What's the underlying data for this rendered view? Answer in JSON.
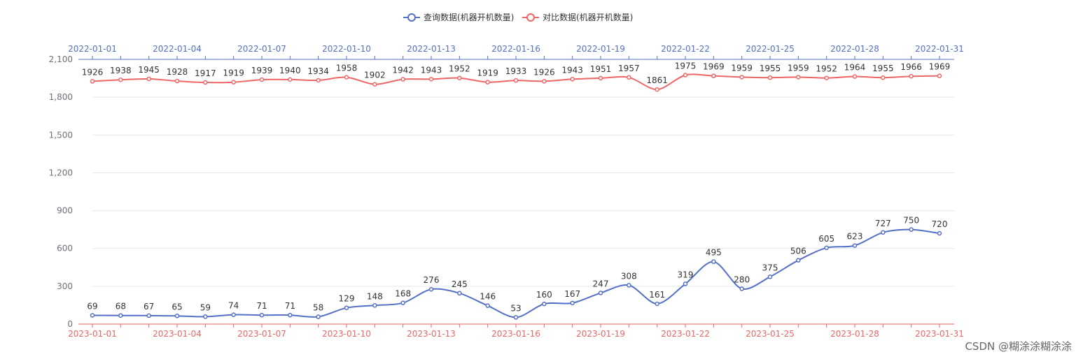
{
  "chart_data": {
    "type": "line",
    "smooth": true,
    "legend": {
      "placement": "top-center",
      "items": [
        {
          "label": "查询数据(机器开机数量)",
          "color": "#5470c6"
        },
        {
          "label": "对比数据(机器开机数量)",
          "color": "#ee6666"
        }
      ]
    },
    "x_bottom": {
      "color": "#ee6666",
      "categories": [
        "2023-01-01",
        "2023-01-02",
        "2023-01-03",
        "2023-01-04",
        "2023-01-05",
        "2023-01-06",
        "2023-01-07",
        "2023-01-08",
        "2023-01-09",
        "2023-01-10",
        "2023-01-11",
        "2023-01-12",
        "2023-01-13",
        "2023-01-14",
        "2023-01-15",
        "2023-01-16",
        "2023-01-17",
        "2023-01-18",
        "2023-01-19",
        "2023-01-20",
        "2023-01-21",
        "2023-01-22",
        "2023-01-23",
        "2023-01-24",
        "2023-01-25",
        "2023-01-26",
        "2023-01-27",
        "2023-01-28",
        "2023-01-29",
        "2023-01-30",
        "2023-01-31"
      ],
      "tick_labels": [
        "2023-01-01",
        "2023-01-04",
        "2023-01-07",
        "2023-01-10",
        "2023-01-13",
        "2023-01-16",
        "2023-01-19",
        "2023-01-22",
        "2023-01-25",
        "2023-01-28",
        "2023-01-31"
      ]
    },
    "x_top": {
      "color": "#5470c6",
      "categories": [
        "2022-01-01",
        "2022-01-02",
        "2022-01-03",
        "2022-01-04",
        "2022-01-05",
        "2022-01-06",
        "2022-01-07",
        "2022-01-08",
        "2022-01-09",
        "2022-01-10",
        "2022-01-11",
        "2022-01-12",
        "2022-01-13",
        "2022-01-14",
        "2022-01-15",
        "2022-01-16",
        "2022-01-17",
        "2022-01-18",
        "2022-01-19",
        "2022-01-20",
        "2022-01-21",
        "2022-01-22",
        "2022-01-23",
        "2022-01-24",
        "2022-01-25",
        "2022-01-26",
        "2022-01-27",
        "2022-01-28",
        "2022-01-29",
        "2022-01-30",
        "2022-01-31"
      ],
      "tick_labels": [
        "2022-01-01",
        "2022-01-04",
        "2022-01-07",
        "2022-01-10",
        "2022-01-13",
        "2022-01-16",
        "2022-01-19",
        "2022-01-22",
        "2022-01-25",
        "2022-01-28",
        "2022-01-31"
      ]
    },
    "y_axis": {
      "ylim": [
        0,
        2100
      ],
      "ticks": [
        0,
        300,
        600,
        900,
        1200,
        1500,
        1800,
        2100
      ],
      "tick_labels": [
        "0",
        "300",
        "600",
        "900",
        "1,200",
        "1,500",
        "1,800",
        "2,100"
      ],
      "grid": true
    },
    "series": [
      {
        "name": "查询数据(机器开机数量)",
        "color": "#5470c6",
        "x_axis": "bottom",
        "values": [
          69,
          68,
          67,
          65,
          59,
          74,
          71,
          71,
          58,
          129,
          148,
          168,
          276,
          245,
          146,
          53,
          160,
          167,
          247,
          308,
          161,
          319,
          495,
          280,
          375,
          506,
          605,
          623,
          727,
          750,
          720
        ]
      },
      {
        "name": "对比数据(机器开机数量)",
        "color": "#ee6666",
        "x_axis": "top",
        "values": [
          1926,
          1938,
          1945,
          1928,
          1917,
          1919,
          1939,
          1940,
          1934,
          1958,
          1902,
          1942,
          1943,
          1952,
          1919,
          1933,
          1926,
          1943,
          1951,
          1957,
          1861,
          1975,
          1969,
          1959,
          1955,
          1959,
          1952,
          1964,
          1955,
          1966,
          1969
        ]
      }
    ]
  },
  "watermark": "CSDN @糊涂涂糊涂涂"
}
